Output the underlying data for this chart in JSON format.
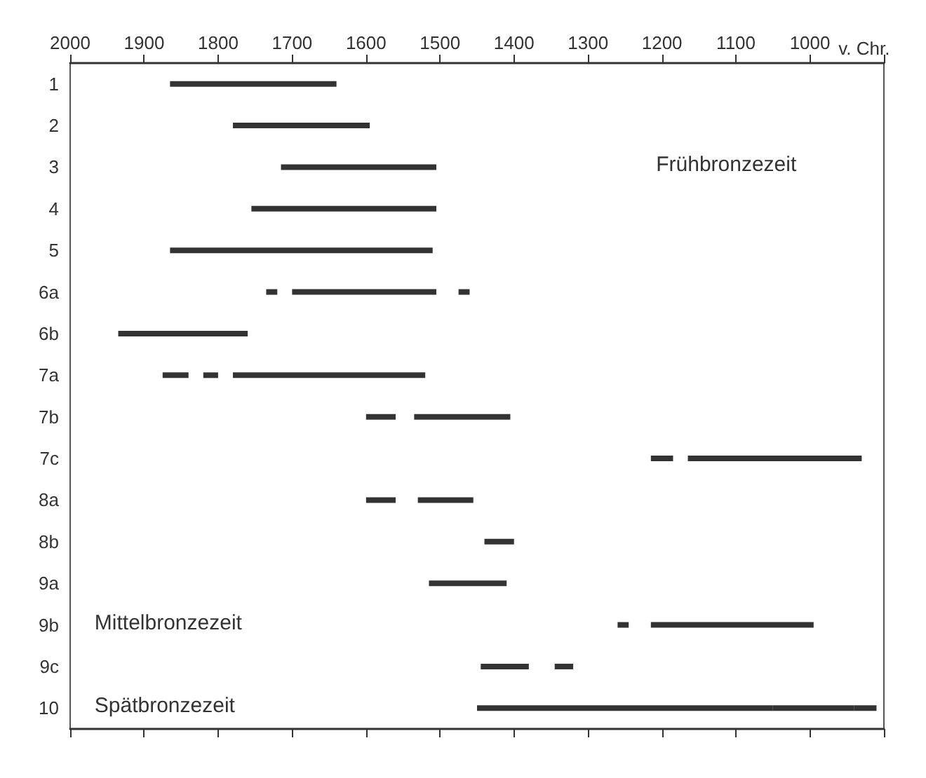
{
  "chart_data": {
    "type": "bar",
    "orientation": "horizontal",
    "xlabel": "v. Chr.",
    "categories": [
      "1",
      "2",
      "3",
      "4",
      "5",
      "6a",
      "6b",
      "7a",
      "7b",
      "7c",
      "8a",
      "8b",
      "9a",
      "9b",
      "9c",
      "10"
    ],
    "xlim": [
      2000,
      900
    ],
    "xticks": [
      2000,
      1900,
      1800,
      1700,
      1600,
      1500,
      1400,
      1300,
      1200,
      1100,
      1000,
      {
        "value": 900,
        "label": null
      }
    ],
    "series": [
      {
        "color": "#333333",
        "base": [
          1640,
          1595,
          1505,
          1505,
          1510,
          1720,
          1760,
          1840,
          1560,
          1185,
          1560,
          1400,
          1410,
          1245,
          1380,
          1050
        ],
        "values": [
          225,
          185,
          210,
          250,
          355,
          15,
          175,
          35,
          40,
          30,
          40,
          40,
          105,
          15,
          65,
          400
        ]
      },
      {
        "color": "#333333",
        "base": [
          null,
          null,
          null,
          null,
          null,
          1505,
          null,
          1800,
          1405,
          930,
          1455,
          null,
          null,
          995,
          1320,
          940
        ],
        "values": [
          null,
          null,
          null,
          null,
          null,
          195,
          null,
          20,
          130,
          235,
          75,
          null,
          null,
          220,
          25,
          110
        ]
      },
      {
        "color": "#333333",
        "base": [
          null,
          null,
          null,
          null,
          null,
          1460,
          null,
          1520,
          null,
          null,
          null,
          null,
          null,
          null,
          null,
          910
        ],
        "values": [
          null,
          null,
          null,
          null,
          null,
          15,
          null,
          260,
          null,
          null,
          null,
          null,
          null,
          null,
          null,
          30
        ]
      }
    ],
    "annotations": [
      "Frühbronzezeit",
      "Mittelbronzezeit",
      "Spätbronzezeit"
    ],
    "grid": false
  }
}
